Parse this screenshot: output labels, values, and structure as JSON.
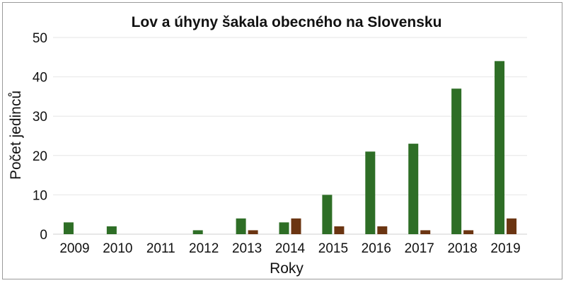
{
  "chart_data": {
    "type": "bar",
    "title": "Lov a úhyny šakala obecného na Slovensku",
    "xlabel": "Roky",
    "ylabel": "Počet jedinců",
    "ylim": [
      0,
      50
    ],
    "yticks": [
      0,
      10,
      20,
      30,
      40,
      50
    ],
    "categories": [
      "2009",
      "2010",
      "2011",
      "2012",
      "2013",
      "2014",
      "2015",
      "2016",
      "2017",
      "2018",
      "2019"
    ],
    "series": [
      {
        "color": "#2e6e26",
        "values": [
          3,
          2,
          0,
          1,
          4,
          3,
          10,
          21,
          23,
          37,
          44
        ]
      },
      {
        "color": "#6b3512",
        "values": [
          0,
          0,
          0,
          0,
          1,
          4,
          2,
          2,
          1,
          1,
          4
        ]
      }
    ],
    "grid": true,
    "legend": "none"
  }
}
